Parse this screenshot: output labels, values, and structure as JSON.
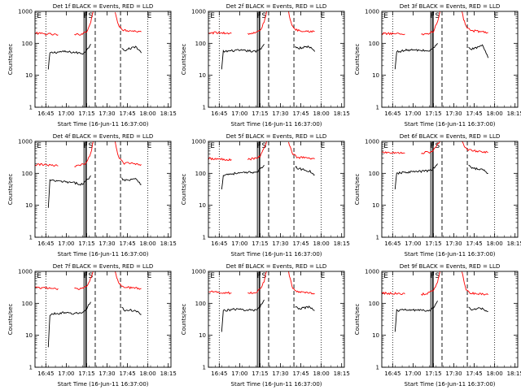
{
  "figure": {
    "xlabel": "Start Time (16-Jun-11 16:37:00)",
    "ylabel": "Counts/sec"
  },
  "colors": {
    "events": "#000000",
    "lld": "#ff0000",
    "axes": "#000000",
    "background": "#ffffff"
  },
  "chart_data": [
    {
      "type": "line",
      "title": "Det 1f BLACK = Events, RED = LLD",
      "xlabel": "Start Time (16-Jun-11 16:37:00)",
      "ylabel": "Counts/sec",
      "xlim": [
        16.617,
        18.283
      ],
      "ylim": [
        1,
        1000
      ],
      "yscale": "log",
      "x_ticks": [
        "16:45",
        "17:00",
        "17:15",
        "17:30",
        "17:45",
        "18:00",
        "18:15"
      ],
      "y_ticks": [
        "1",
        "10",
        "100",
        "1000"
      ],
      "markers": [
        "E",
        "F",
        "S",
        "E"
      ],
      "series": [
        {
          "name": "Events",
          "x": [
            16.78,
            16.8,
            16.95,
            17.1,
            17.2,
            17.25,
            17.3,
            17.68,
            17.72,
            17.85,
            17.92
          ],
          "y": [
            15,
            50,
            55,
            52,
            48,
            60,
            95,
            75,
            60,
            80,
            50
          ]
        },
        {
          "name": "LLD",
          "x": [
            16.617,
            16.7,
            16.9,
            17.1,
            17.2,
            17.25,
            17.3,
            17.33,
            17.6,
            17.62,
            17.65,
            17.7,
            17.85,
            17.92
          ],
          "y": [
            210,
            200,
            185,
            180,
            200,
            240,
            450,
            1000,
            1000,
            550,
            350,
            260,
            240,
            230
          ]
        }
      ]
    },
    {
      "type": "line",
      "title": "Det 2f BLACK = Events, RED = LLD",
      "xlabel": "Start Time (16-Jun-11 16:37:00)",
      "ylabel": "Counts/sec",
      "xlim": [
        16.617,
        18.283
      ],
      "ylim": [
        1,
        1000
      ],
      "yscale": "log",
      "x_ticks": [
        "16:45",
        "17:00",
        "17:15",
        "17:30",
        "17:45",
        "18:00",
        "18:15"
      ],
      "y_ticks": [
        "1",
        "10",
        "100",
        "1000"
      ],
      "markers": [
        "E",
        "F",
        "S",
        "E"
      ],
      "series": [
        {
          "name": "Events",
          "x": [
            16.78,
            16.8,
            16.95,
            17.1,
            17.2,
            17.25,
            17.3,
            17.68,
            17.72,
            17.85,
            17.92
          ],
          "y": [
            15,
            55,
            60,
            58,
            55,
            65,
            95,
            80,
            70,
            80,
            55
          ]
        },
        {
          "name": "LLD",
          "x": [
            16.617,
            16.7,
            16.9,
            17.1,
            17.2,
            17.25,
            17.3,
            17.33,
            17.6,
            17.62,
            17.65,
            17.7,
            17.85,
            17.92
          ],
          "y": [
            210,
            215,
            205,
            200,
            215,
            250,
            450,
            1000,
            1000,
            550,
            330,
            260,
            240,
            235
          ]
        }
      ]
    },
    {
      "type": "line",
      "title": "Det 3f BLACK = Events, RED = LLD",
      "xlabel": "Start Time (16-Jun-11 16:37:00)",
      "ylabel": "Counts/sec",
      "xlim": [
        16.617,
        18.283
      ],
      "ylim": [
        1,
        1000
      ],
      "yscale": "log",
      "x_ticks": [
        "16:45",
        "17:00",
        "17:15",
        "17:30",
        "17:45",
        "18:00",
        "18:15"
      ],
      "y_ticks": [
        "1",
        "10",
        "100",
        "1000"
      ],
      "markers": [
        "E",
        "F",
        "S",
        "E"
      ],
      "series": [
        {
          "name": "Events",
          "x": [
            16.78,
            16.8,
            16.95,
            17.1,
            17.2,
            17.25,
            17.3,
            17.68,
            17.72,
            17.85,
            17.92
          ],
          "y": [
            15,
            55,
            62,
            60,
            58,
            70,
            100,
            80,
            65,
            85,
            35
          ]
        },
        {
          "name": "LLD",
          "x": [
            16.617,
            16.7,
            16.9,
            17.1,
            17.2,
            17.25,
            17.3,
            17.33,
            17.6,
            17.62,
            17.65,
            17.7,
            17.85,
            17.92
          ],
          "y": [
            200,
            205,
            195,
            190,
            205,
            240,
            460,
            1000,
            1000,
            560,
            350,
            250,
            230,
            220
          ]
        }
      ]
    },
    {
      "type": "line",
      "title": "Det 4f BLACK = Events, RED = LLD",
      "xlabel": "Start Time (16-Jun-11 16:37:00)",
      "ylabel": "Counts/sec",
      "xlim": [
        16.617,
        18.283
      ],
      "ylim": [
        1,
        1000
      ],
      "yscale": "log",
      "x_ticks": [
        "16:45",
        "17:00",
        "17:15",
        "17:30",
        "17:45",
        "18:00",
        "18:15"
      ],
      "y_ticks": [
        "1",
        "10",
        "100",
        "1000"
      ],
      "markers": [
        "E",
        "F",
        "S",
        "E"
      ],
      "series": [
        {
          "name": "Events",
          "x": [
            16.78,
            16.8,
            16.95,
            17.1,
            17.2,
            17.25,
            17.3,
            17.68,
            17.72,
            17.85,
            17.92
          ],
          "y": [
            8,
            60,
            55,
            50,
            45,
            60,
            85,
            70,
            60,
            70,
            45
          ]
        },
        {
          "name": "LLD",
          "x": [
            16.617,
            16.7,
            16.9,
            17.1,
            17.2,
            17.25,
            17.3,
            17.33,
            17.6,
            17.62,
            17.65,
            17.7,
            17.85,
            17.92
          ],
          "y": [
            185,
            190,
            170,
            165,
            185,
            220,
            420,
            1000,
            1000,
            500,
            300,
            210,
            200,
            190
          ]
        }
      ]
    },
    {
      "type": "line",
      "title": "Det 5f BLACK = Events, RED = LLD",
      "xlabel": "Start Time (16-Jun-11 16:37:00)",
      "ylabel": "Counts/sec",
      "xlim": [
        16.617,
        18.283
      ],
      "ylim": [
        1,
        1000
      ],
      "yscale": "log",
      "x_ticks": [
        "16:45",
        "17:00",
        "17:15",
        "17:30",
        "17:45",
        "18:00",
        "18:15"
      ],
      "y_ticks": [
        "1",
        "10",
        "100",
        "1000"
      ],
      "markers": [
        "E",
        "F",
        "S",
        "E"
      ],
      "series": [
        {
          "name": "Events",
          "x": [
            16.78,
            16.8,
            16.95,
            17.1,
            17.2,
            17.25,
            17.3,
            17.68,
            17.72,
            17.85,
            17.92
          ],
          "y": [
            30,
            90,
            100,
            105,
            110,
            130,
            180,
            160,
            140,
            120,
            90
          ]
        },
        {
          "name": "LLD",
          "x": [
            16.617,
            16.7,
            16.9,
            17.1,
            17.2,
            17.25,
            17.3,
            17.33,
            17.6,
            17.62,
            17.65,
            17.7,
            17.85,
            17.92
          ],
          "y": [
            290,
            280,
            270,
            275,
            300,
            340,
            600,
            1000,
            1000,
            650,
            420,
            320,
            300,
            280
          ]
        }
      ]
    },
    {
      "type": "line",
      "title": "Det 6f BLACK = Events, RED = LLD",
      "xlabel": "Start Time (16-Jun-11 16:37:00)",
      "ylabel": "Counts/sec",
      "xlim": [
        16.617,
        18.283
      ],
      "ylim": [
        1,
        1000
      ],
      "yscale": "log",
      "x_ticks": [
        "16:45",
        "17:00",
        "17:15",
        "17:30",
        "17:45",
        "18:00",
        "18:15"
      ],
      "y_ticks": [
        "1",
        "10",
        "100",
        "1000"
      ],
      "markers": [
        "E",
        "F",
        "S",
        "E"
      ],
      "series": [
        {
          "name": "Events",
          "x": [
            16.78,
            16.8,
            16.95,
            17.1,
            17.2,
            17.25,
            17.3,
            17.68,
            17.72,
            17.85,
            17.92
          ],
          "y": [
            30,
            100,
            110,
            115,
            120,
            140,
            200,
            170,
            150,
            130,
            100
          ]
        },
        {
          "name": "LLD",
          "x": [
            16.617,
            16.7,
            16.9,
            17.1,
            17.2,
            17.25,
            17.3,
            17.33,
            17.6,
            17.62,
            17.65,
            17.7,
            17.85,
            17.92
          ],
          "y": [
            450,
            440,
            430,
            435,
            460,
            520,
            800,
            1000,
            1000,
            800,
            600,
            520,
            480,
            450
          ]
        }
      ]
    },
    {
      "type": "line",
      "title": "Det 7f BLACK = Events, RED = LLD",
      "xlabel": "Start Time (16-Jun-11 16:37:00)",
      "ylabel": "Counts/sec",
      "xlim": [
        16.617,
        18.283
      ],
      "ylim": [
        1,
        1000
      ],
      "yscale": "log",
      "x_ticks": [
        "16:45",
        "17:00",
        "17:15",
        "17:30",
        "17:45",
        "18:00",
        "18:15"
      ],
      "y_ticks": [
        "1",
        "10",
        "100",
        "1000"
      ],
      "markers": [
        "E",
        "F",
        "S",
        "E"
      ],
      "series": [
        {
          "name": "Events",
          "x": [
            16.78,
            16.8,
            16.95,
            17.1,
            17.2,
            17.25,
            17.3,
            17.68,
            17.72,
            17.85,
            17.92
          ],
          "y": [
            4,
            45,
            50,
            48,
            50,
            70,
            110,
            75,
            60,
            60,
            45
          ]
        },
        {
          "name": "LLD",
          "x": [
            16.617,
            16.7,
            16.9,
            17.1,
            17.2,
            17.25,
            17.3,
            17.33,
            17.6,
            17.62,
            17.65,
            17.7,
            17.85,
            17.92
          ],
          "y": [
            310,
            300,
            290,
            280,
            300,
            350,
            600,
            1000,
            1000,
            650,
            400,
            320,
            300,
            290
          ]
        }
      ]
    },
    {
      "type": "line",
      "title": "Det 8f BLACK = Events, RED = LLD",
      "xlabel": "Start Time (16-Jun-11 16:37:00)",
      "ylabel": "Counts/sec",
      "xlim": [
        16.617,
        18.283
      ],
      "ylim": [
        1,
        1000
      ],
      "yscale": "log",
      "x_ticks": [
        "16:45",
        "17:00",
        "17:15",
        "17:30",
        "17:45",
        "18:00",
        "18:15"
      ],
      "y_ticks": [
        "1",
        "10",
        "100",
        "1000"
      ],
      "markers": [
        "E",
        "F",
        "S",
        "E"
      ],
      "series": [
        {
          "name": "Events",
          "x": [
            16.78,
            16.8,
            16.95,
            17.1,
            17.2,
            17.25,
            17.3,
            17.68,
            17.72,
            17.85,
            17.92
          ],
          "y": [
            12,
            60,
            65,
            62,
            60,
            80,
            130,
            80,
            70,
            75,
            60
          ]
        },
        {
          "name": "LLD",
          "x": [
            16.617,
            16.7,
            16.9,
            17.1,
            17.2,
            17.25,
            17.3,
            17.33,
            17.6,
            17.62,
            17.65,
            17.7,
            17.85,
            17.92
          ],
          "y": [
            230,
            225,
            210,
            205,
            225,
            270,
            500,
            1000,
            1000,
            560,
            300,
            230,
            215,
            205
          ]
        }
      ]
    },
    {
      "type": "line",
      "title": "Det 9f BLACK = Events, RED = LLD",
      "xlabel": "Start Time (16-Jun-11 16:37:00)",
      "ylabel": "Counts/sec",
      "xlim": [
        16.617,
        18.283
      ],
      "ylim": [
        1,
        1000
      ],
      "yscale": "log",
      "x_ticks": [
        "16:45",
        "17:00",
        "17:15",
        "17:30",
        "17:45",
        "18:00",
        "18:15"
      ],
      "y_ticks": [
        "1",
        "10",
        "100",
        "1000"
      ],
      "markers": [
        "E",
        "F",
        "S",
        "E"
      ],
      "series": [
        {
          "name": "Events",
          "x": [
            16.78,
            16.8,
            16.95,
            17.1,
            17.2,
            17.25,
            17.3,
            17.68,
            17.72,
            17.85,
            17.92
          ],
          "y": [
            12,
            60,
            62,
            60,
            58,
            75,
            120,
            75,
            65,
            70,
            55
          ]
        },
        {
          "name": "LLD",
          "x": [
            16.617,
            16.7,
            16.9,
            17.1,
            17.2,
            17.25,
            17.3,
            17.33,
            17.6,
            17.62,
            17.65,
            17.7,
            17.85,
            17.92
          ],
          "y": [
            210,
            205,
            195,
            190,
            210,
            260,
            480,
            1000,
            1000,
            540,
            280,
            210,
            195,
            185
          ]
        }
      ]
    }
  ]
}
